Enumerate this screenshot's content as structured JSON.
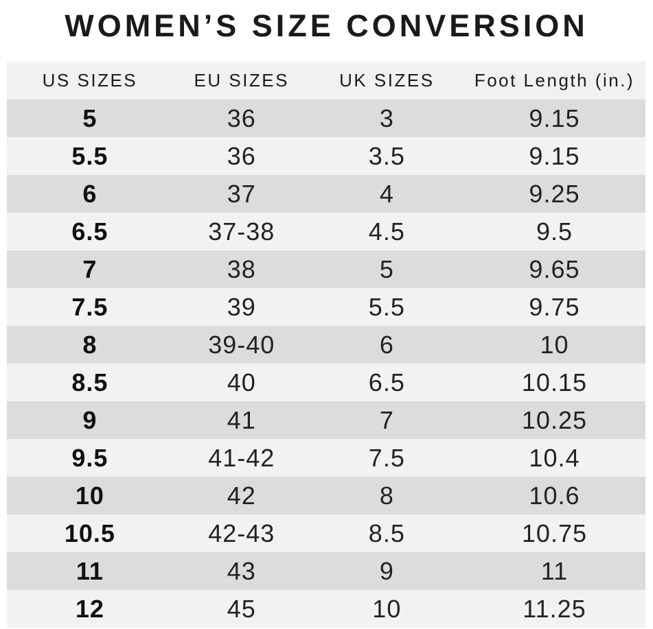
{
  "chart_data": {
    "type": "table",
    "title": "WOMEN’S SIZE CONVERSION",
    "columns": [
      "US SIZES",
      "EU SIZES",
      "UK SIZES",
      "Foot Length (in.)"
    ],
    "rows": [
      [
        "5",
        "36",
        "3",
        "9.15"
      ],
      [
        "5.5",
        "36",
        "3.5",
        "9.15"
      ],
      [
        "6",
        "37",
        "4",
        "9.25"
      ],
      [
        "6.5",
        "37-38",
        "4.5",
        "9.5"
      ],
      [
        "7",
        "38",
        "5",
        "9.65"
      ],
      [
        "7.5",
        "39",
        "5.5",
        "9.75"
      ],
      [
        "8",
        "39-40",
        "6",
        "10"
      ],
      [
        "8.5",
        "40",
        "6.5",
        "10.15"
      ],
      [
        "9",
        "41",
        "7",
        "10.25"
      ],
      [
        "9.5",
        "41-42",
        "7.5",
        "10.4"
      ],
      [
        "10",
        "42",
        "8",
        "10.6"
      ],
      [
        "10.5",
        "42-43",
        "8.5",
        "10.75"
      ],
      [
        "11",
        "43",
        "9",
        "11"
      ],
      [
        "12",
        "45",
        "10",
        "11.25"
      ]
    ]
  },
  "colors": {
    "title_text": "#1a1a1b",
    "header_bg": "#f1f1f2",
    "header_text": "#1b1b1d",
    "row_dark": "#dbdcde",
    "row_light": "#f2f2f3",
    "data_text": "#222225",
    "us_text": "#101012",
    "page_bg": "#ffffff"
  }
}
